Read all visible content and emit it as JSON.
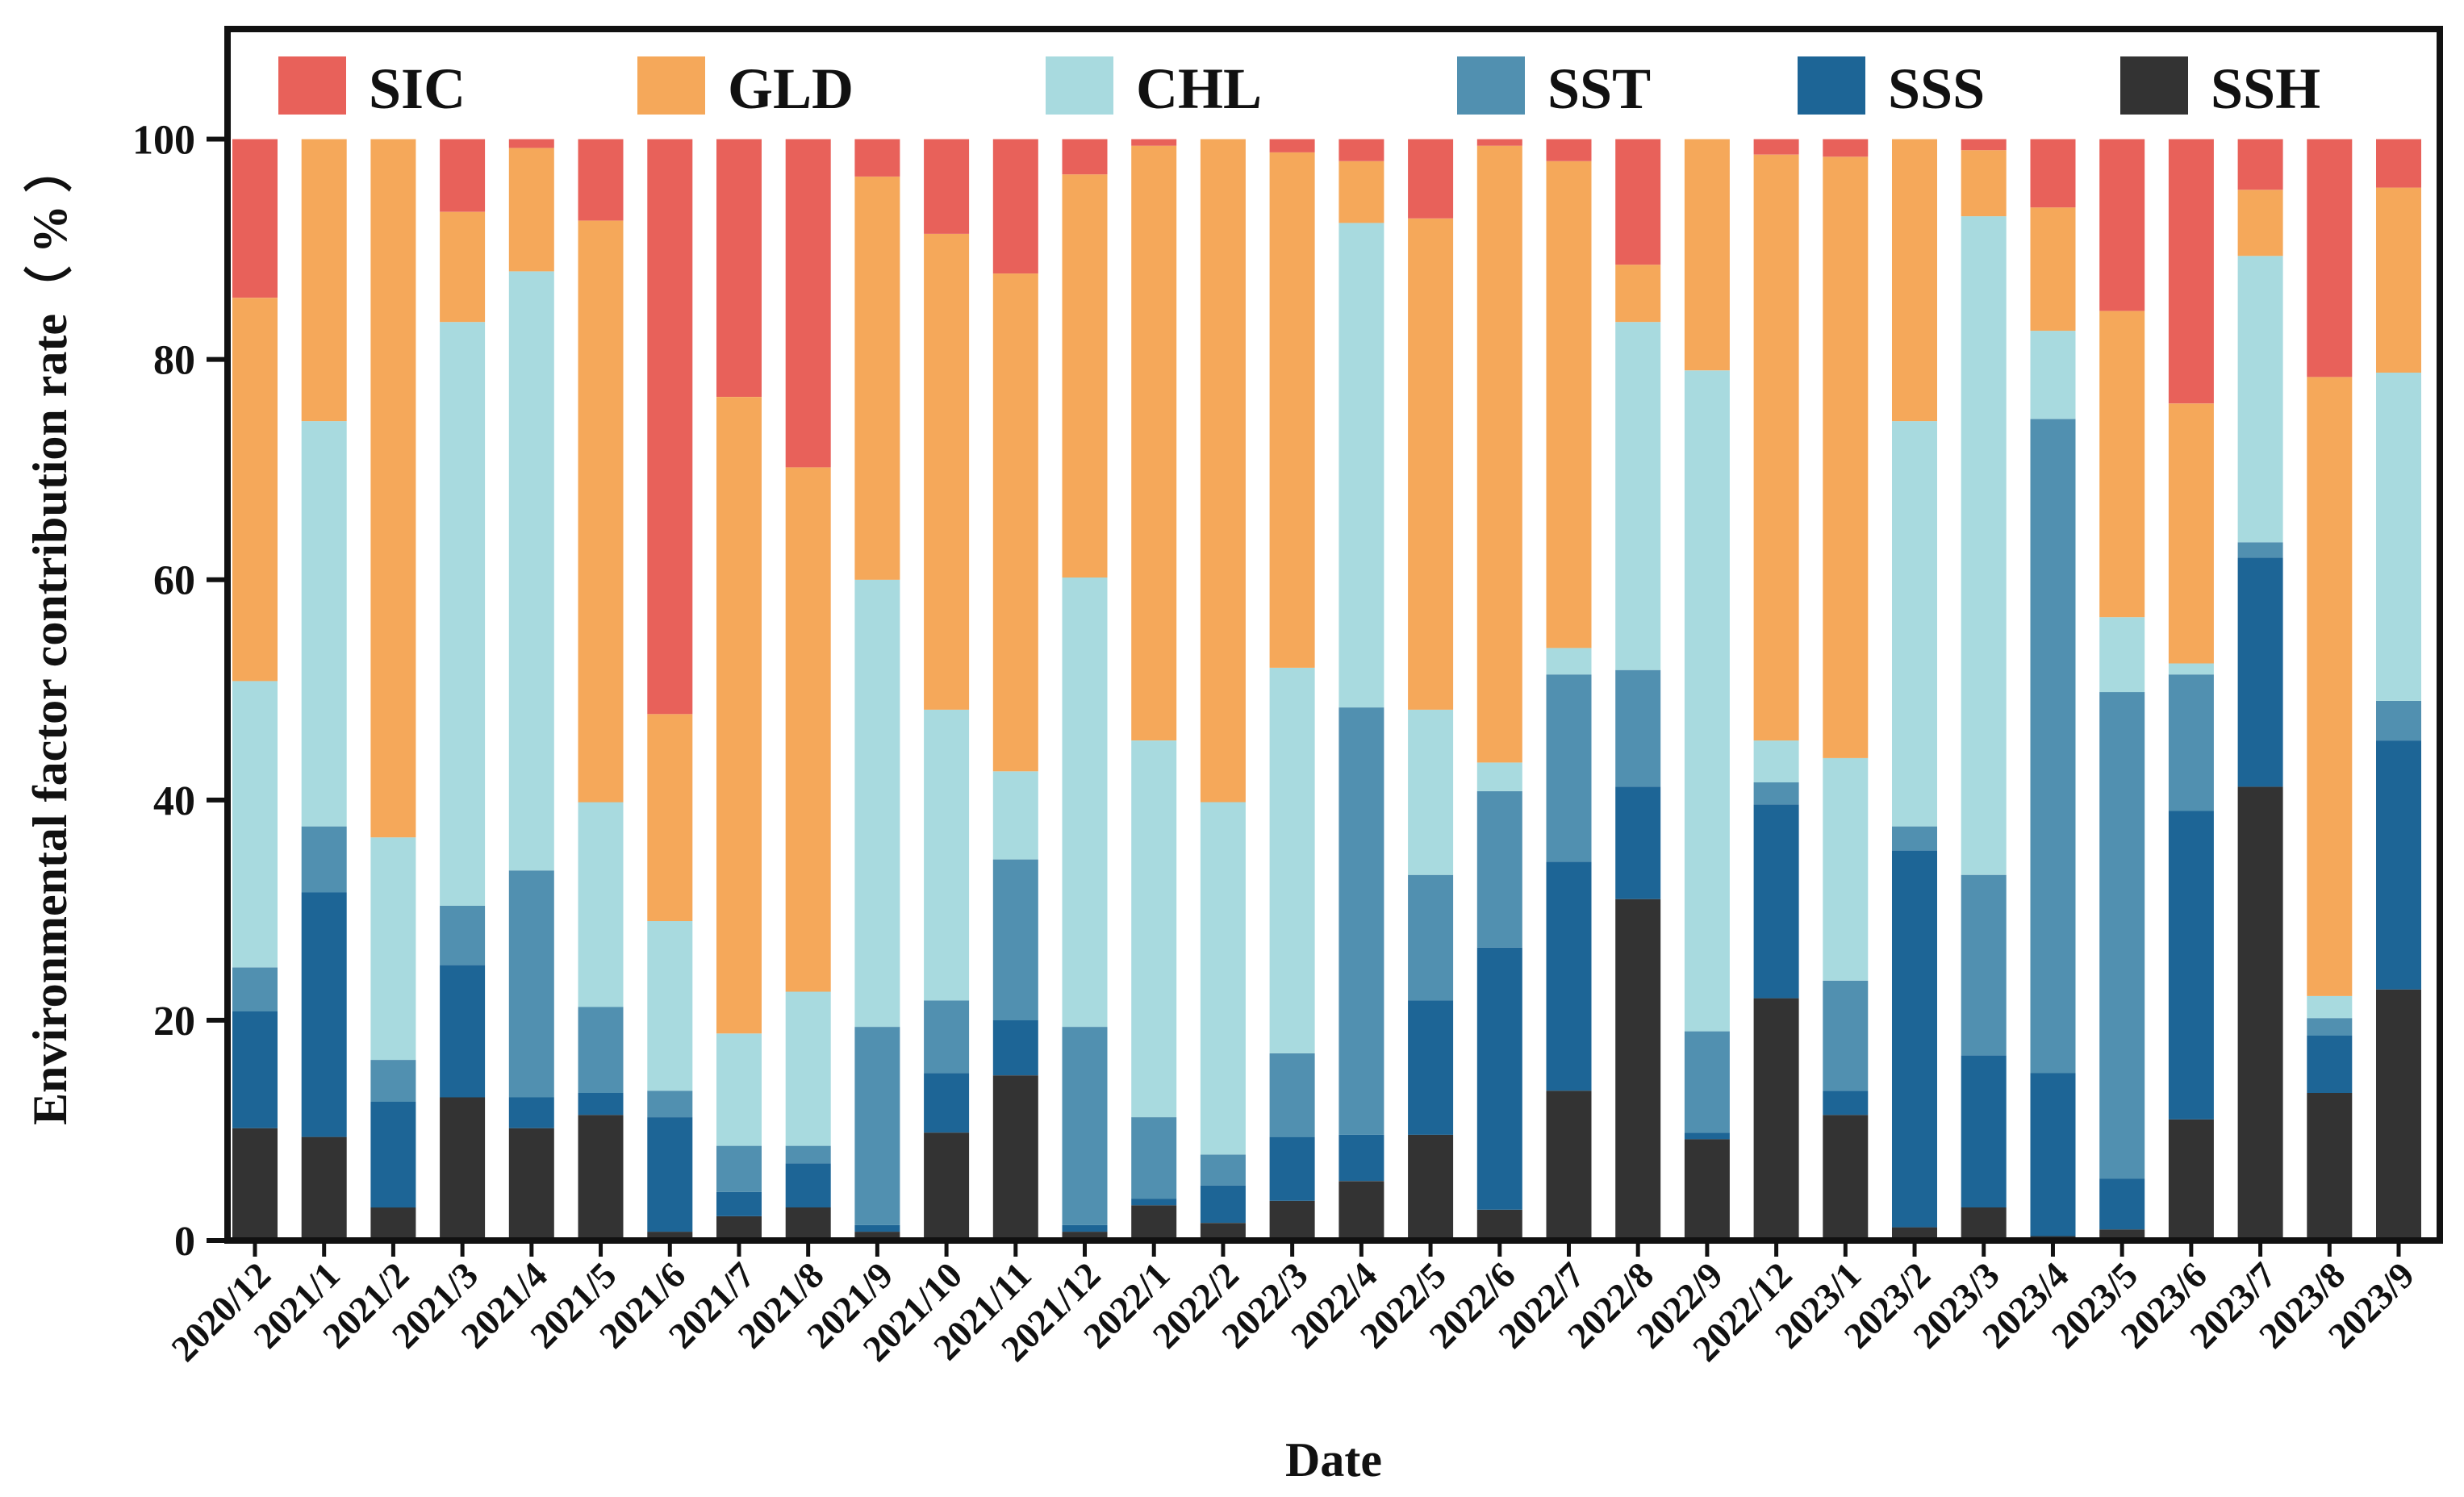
{
  "chart_data": {
    "type": "bar",
    "stacked": true,
    "xlabel": "Date",
    "ylabel": "Environmental factor contribution rate（ % ）",
    "ylim": [
      0,
      110
    ],
    "yticks": [
      0,
      20,
      40,
      60,
      80,
      100
    ],
    "grid": false,
    "legend_position": "top",
    "categories": [
      "2020/12",
      "2021/1",
      "2021/2",
      "2021/3",
      "2021/4",
      "2021/5",
      "2021/6",
      "2021/7",
      "2021/8",
      "2021/9",
      "2021/10",
      "2021/11",
      "2021/12",
      "2022/1",
      "2022/2",
      "2022/3",
      "2022/4",
      "2022/5",
      "2022/6",
      "2022/7",
      "2022/8",
      "2022/9",
      "2022/12",
      "2023/1",
      "2023/2",
      "2023/3",
      "2023/4",
      "2023/5",
      "2023/6",
      "2023/7",
      "2023/8",
      "2023/9"
    ],
    "series": [
      {
        "name": "SSH",
        "color": "#333333",
        "values": [
          10.2,
          9.4,
          3.0,
          13.0,
          10.2,
          11.4,
          0.8,
          2.2,
          3.0,
          0.8,
          9.8,
          15.0,
          0.8,
          3.2,
          1.6,
          3.6,
          5.4,
          9.6,
          2.8,
          13.6,
          31.0,
          9.2,
          22.0,
          11.4,
          1.2,
          3.0,
          0.4,
          1.0,
          11.0,
          41.2,
          13.4,
          22.8
        ]
      },
      {
        "name": "SSS",
        "color": "#1d6596",
        "values": [
          10.6,
          22.2,
          9.6,
          12.0,
          2.8,
          2.0,
          10.4,
          2.2,
          4.0,
          0.6,
          5.4,
          5.0,
          0.6,
          0.6,
          3.4,
          5.8,
          4.2,
          12.2,
          23.8,
          20.8,
          10.2,
          0.6,
          17.6,
          2.2,
          34.2,
          13.8,
          14.8,
          4.6,
          28.0,
          20.8,
          5.2,
          22.6
        ]
      },
      {
        "name": "SST",
        "color": "#5190b0",
        "values": [
          4.0,
          6.0,
          3.8,
          5.4,
          20.6,
          7.8,
          2.4,
          4.2,
          1.6,
          18.0,
          6.6,
          14.6,
          18.0,
          7.4,
          2.8,
          7.6,
          38.8,
          11.4,
          14.2,
          17.0,
          10.6,
          9.2,
          2.0,
          10.0,
          2.2,
          16.4,
          59.4,
          44.2,
          12.4,
          1.4,
          1.6,
          3.6
        ]
      },
      {
        "name": "CHL",
        "color": "#a8dadf",
        "values": [
          26.0,
          36.8,
          20.2,
          53.0,
          54.4,
          18.6,
          15.4,
          10.2,
          14.0,
          40.6,
          26.4,
          8.0,
          40.8,
          34.2,
          32.0,
          35.0,
          44.0,
          15.0,
          2.6,
          2.4,
          31.6,
          60.0,
          3.8,
          20.2,
          36.8,
          59.8,
          8.0,
          6.8,
          1.0,
          26.0,
          2.0,
          29.8
        ]
      },
      {
        "name": "GLD",
        "color": "#f5a85a",
        "values": [
          34.8,
          25.6,
          63.4,
          10.0,
          11.2,
          52.8,
          18.8,
          57.8,
          47.6,
          36.6,
          43.2,
          45.2,
          36.6,
          54.0,
          60.2,
          46.8,
          5.6,
          44.6,
          56.0,
          44.2,
          5.2,
          21.0,
          53.2,
          54.6,
          25.6,
          6.0,
          11.2,
          27.8,
          23.6,
          6.0,
          56.2,
          16.8
        ]
      },
      {
        "name": "SIC",
        "color": "#e8615a",
        "values": [
          14.4,
          0.0,
          0.0,
          6.6,
          0.8,
          7.4,
          52.2,
          23.4,
          29.8,
          3.4,
          8.6,
          12.2,
          3.2,
          0.6,
          0.0,
          1.2,
          2.0,
          7.2,
          0.6,
          2.0,
          11.4,
          0.0,
          1.4,
          1.6,
          0.0,
          1.0,
          6.2,
          15.6,
          24.0,
          4.6,
          21.6,
          4.4
        ]
      }
    ]
  }
}
